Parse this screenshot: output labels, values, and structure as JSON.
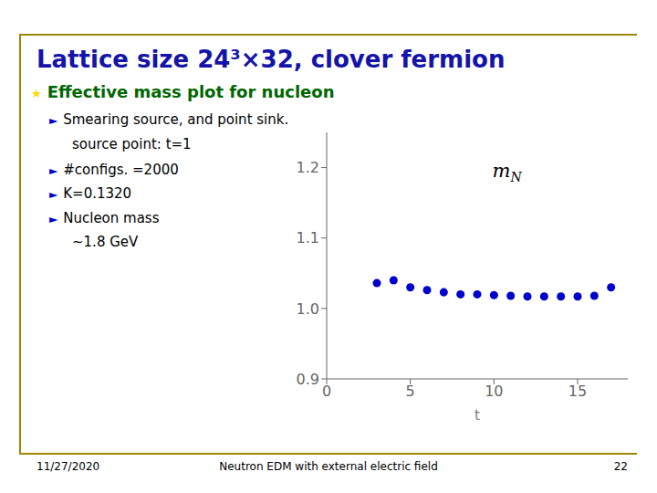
{
  "chart_data": {
    "type": "scatter",
    "title": "Lattice size 24³×32, clover fermion",
    "xlabel": "t",
    "x": [
      3,
      4,
      5,
      6,
      7,
      8,
      9,
      10,
      11,
      12,
      13,
      14,
      15,
      16,
      17
    ],
    "values": [
      1.036,
      1.04,
      1.03,
      1.026,
      1.023,
      1.02,
      1.02,
      1.019,
      1.018,
      1.017,
      1.017,
      1.017,
      1.017,
      1.018,
      1.03
    ],
    "color": "#0000CC",
    "xlim": [
      0,
      18
    ],
    "ylim": [
      0.9,
      1.25
    ],
    "xticks": [
      0,
      5,
      10,
      15
    ],
    "yticks": [
      0.9,
      {
        "value": 1.0,
        "label": "1.0"
      },
      1.1,
      1.2
    ],
    "grid": false,
    "annotations": {
      "slide": [
        "★ Effective mass plot for nucleon",
        "► Smearing source, and point sink.",
        "source point: t=1",
        "► #configs. =2000",
        "► K=0.1320",
        "► Nucleon mass",
        "~1.8 GeV"
      ],
      "plot": "mN",
      "footer": [
        "11/27/2020",
        "Neutron EDM with external electric field",
        "22"
      ]
    }
  }
}
